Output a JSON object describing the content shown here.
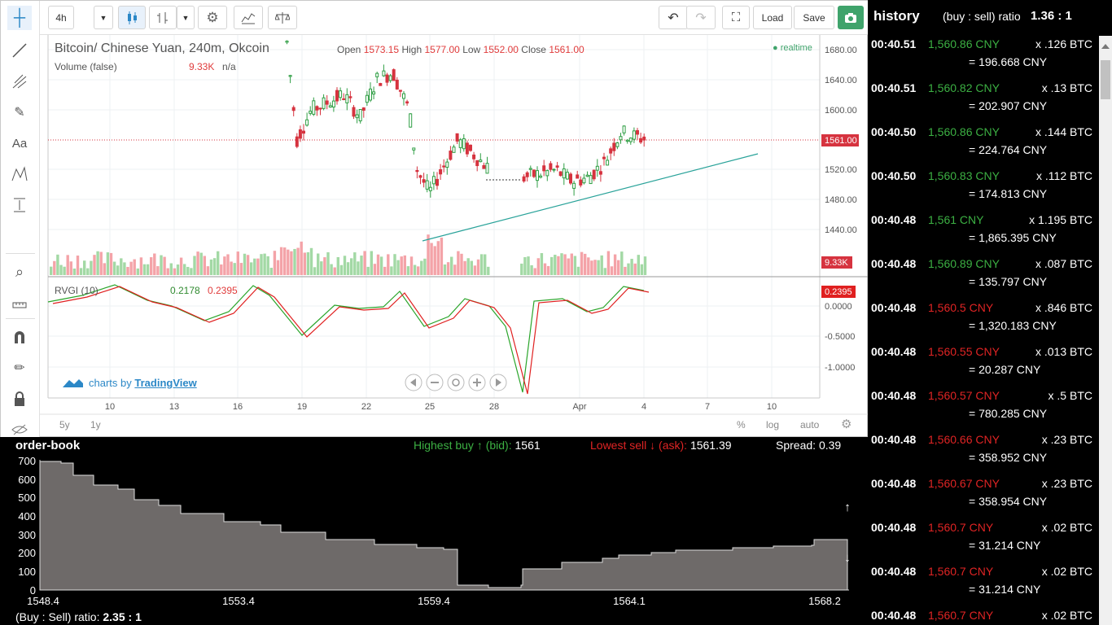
{
  "toolbar": {
    "interval": "4h",
    "load_label": "Load",
    "save_label": "Save"
  },
  "chart": {
    "symbol_title": "Bitcoin/ Chinese Yuan, 240m, Okcoin",
    "open_label": "Open",
    "open_value": "1573.15",
    "high_label": "High",
    "high_value": "1577.00",
    "low_label": "Low",
    "low_value": "1552.00",
    "close_label": "Close",
    "close_value": "1561.00",
    "volume_label": "Volume (false)",
    "volume_value": "9.33K",
    "volume_na": "n/a",
    "realtime_label": "realtime",
    "price_axis": [
      "1680.00",
      "1640.00",
      "1600.00",
      "1561.00",
      "1520.00",
      "1480.00",
      "1440.00"
    ],
    "last_price_tag": "1561.00",
    "volume_tag": "9.33K",
    "rvgi_label": "RVGI (10)",
    "rvgi_value1": "0.2178",
    "rvgi_value2": "0.2395",
    "rvgi_axis": [
      "0.0000",
      "-0.5000",
      "-1.0000"
    ],
    "rvgi_tag": "0.2395",
    "time_axis": [
      "10",
      "13",
      "16",
      "19",
      "22",
      "25",
      "28",
      "Apr",
      "4",
      "7",
      "10"
    ],
    "branding_prefix": "charts by",
    "branding_link": "TradingView",
    "range_5y": "5y",
    "range_1y": "1y",
    "pct_label": "%",
    "log_label": "log",
    "auto_label": "auto"
  },
  "history": {
    "title": "history",
    "ratio_label": "(buy : sell) ratio",
    "ratio_value": "1.36 : 1",
    "rows": [
      {
        "time": "00:40.51",
        "price": "1,560.86 CNY",
        "side": "buy",
        "qty": "x .126 BTC",
        "total": "= 196.668 CNY"
      },
      {
        "time": "00:40.51",
        "price": "1,560.82 CNY",
        "side": "buy",
        "qty": "x .13 BTC",
        "total": "= 202.907 CNY"
      },
      {
        "time": "00:40.50",
        "price": "1,560.86 CNY",
        "side": "buy",
        "qty": "x .144 BTC",
        "total": "= 224.764 CNY"
      },
      {
        "time": "00:40.50",
        "price": "1,560.83 CNY",
        "side": "buy",
        "qty": "x .112 BTC",
        "total": "= 174.813 CNY"
      },
      {
        "time": "00:40.48",
        "price": "1,561 CNY",
        "side": "buy",
        "qty": "x 1.195 BTC",
        "total": "= 1,865.395 CNY"
      },
      {
        "time": "00:40.48",
        "price": "1,560.89 CNY",
        "side": "buy",
        "qty": "x .087 BTC",
        "total": "= 135.797 CNY"
      },
      {
        "time": "00:40.48",
        "price": "1,560.5 CNY",
        "side": "sell",
        "qty": "x .846 BTC",
        "total": "= 1,320.183 CNY"
      },
      {
        "time": "00:40.48",
        "price": "1,560.55 CNY",
        "side": "sell",
        "qty": "x .013 BTC",
        "total": "= 20.287 CNY"
      },
      {
        "time": "00:40.48",
        "price": "1,560.57 CNY",
        "side": "sell",
        "qty": "x .5 BTC",
        "total": "= 780.285 CNY"
      },
      {
        "time": "00:40.48",
        "price": "1,560.66 CNY",
        "side": "sell",
        "qty": "x .23 BTC",
        "total": "= 358.952 CNY"
      },
      {
        "time": "00:40.48",
        "price": "1,560.67 CNY",
        "side": "sell",
        "qty": "x .23 BTC",
        "total": "= 358.954 CNY"
      },
      {
        "time": "00:40.48",
        "price": "1,560.7 CNY",
        "side": "sell",
        "qty": "x .02 BTC",
        "total": "= 31.214 CNY"
      },
      {
        "time": "00:40.48",
        "price": "1,560.7 CNY",
        "side": "sell",
        "qty": "x .02 BTC",
        "total": "= 31.214 CNY"
      },
      {
        "time": "00:40.48",
        "price": "1,560.7 CNY",
        "side": "sell",
        "qty": "x .02 BTC",
        "total": ""
      }
    ]
  },
  "orderbook": {
    "title": "order-book",
    "bid_label": "Highest buy ↑ (bid):",
    "bid_value": "1561",
    "ask_label": "Lowest sell ↓ (ask):",
    "ask_value": "1561.39",
    "spread_label": "Spread:",
    "spread_value": "0.39",
    "ratio_label": "(Buy : Sell) ratio:",
    "ratio_value": "2.35 : 1",
    "y_ticks": [
      "700",
      "600",
      "500",
      "400",
      "300",
      "200",
      "100",
      "0"
    ],
    "x_ticks": [
      "1548.4",
      "1553.4",
      "1559.4",
      "1564.1",
      "1568.2"
    ],
    "up_arrow": "↑",
    "down_arrow": "↓"
  },
  "colors": {
    "up_candle": "#2f9e44",
    "down_candle": "#d6333f",
    "vol_up": "#a3d9a5",
    "vol_down": "#f4a3a8",
    "rvgi_green": "#2aa52a",
    "rvgi_red": "#e02020",
    "trendline": "#2aa39a",
    "depth_fill": "#6e6a69",
    "buy": "#3cb043",
    "sell": "#e02424"
  }
}
